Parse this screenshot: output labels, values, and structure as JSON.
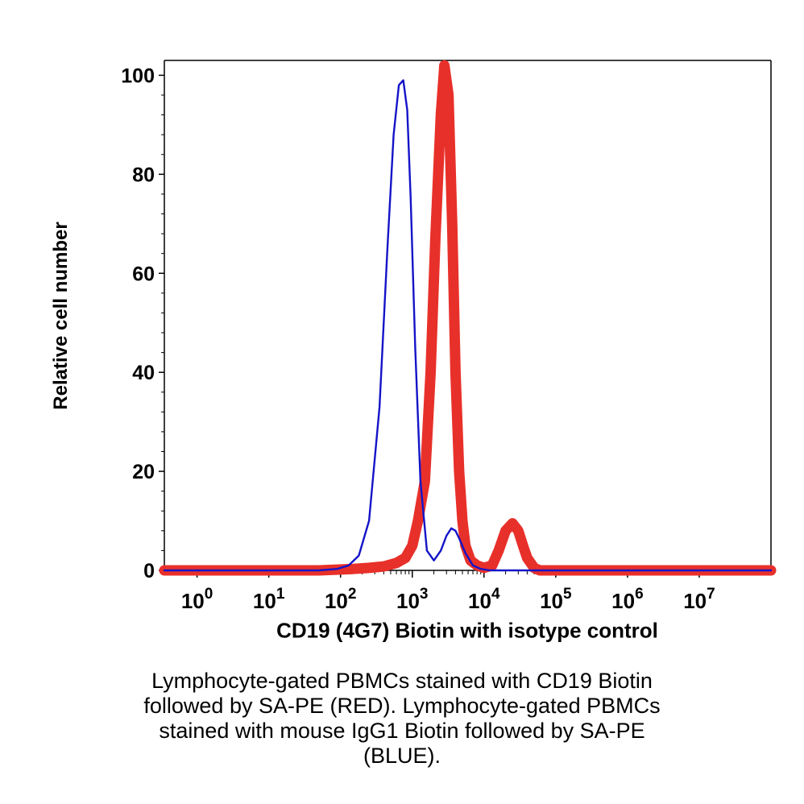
{
  "chart_data": {
    "type": "line",
    "title": "",
    "xlabel": "CD19 (4G7) Biotin with isotype control",
    "ylabel": "Relative cell number",
    "x_scale": "log",
    "xlim": [
      0.35,
      100000000
    ],
    "ylim": [
      0,
      103
    ],
    "grid": false,
    "x_ticks": [
      {
        "value": 1,
        "base": "10",
        "exp": "0"
      },
      {
        "value": 10,
        "base": "10",
        "exp": "1"
      },
      {
        "value": 100,
        "base": "10",
        "exp": "2"
      },
      {
        "value": 1000,
        "base": "10",
        "exp": "3"
      },
      {
        "value": 10000,
        "base": "10",
        "exp": "4"
      },
      {
        "value": 100000,
        "base": "10",
        "exp": "5"
      },
      {
        "value": 1000000,
        "base": "10",
        "exp": "6"
      },
      {
        "value": 10000000,
        "base": "10",
        "exp": "7"
      }
    ],
    "y_ticks": [
      {
        "value": 0,
        "label": "0"
      },
      {
        "value": 20,
        "label": "20"
      },
      {
        "value": 40,
        "label": "40"
      },
      {
        "value": 60,
        "label": "60"
      },
      {
        "value": 80,
        "label": "80"
      },
      {
        "value": 100,
        "label": "100"
      }
    ],
    "series": [
      {
        "color": "#1414c8",
        "x": [
          0.35,
          50,
          90,
          130,
          180,
          250,
          350,
          450,
          550,
          650,
          750,
          850,
          950,
          1100,
          1300,
          1600,
          2000,
          2500,
          3000,
          3500,
          4000,
          4500,
          5500,
          7000,
          9000,
          12000,
          100000000
        ],
        "y": [
          0,
          0,
          0.3,
          1,
          3,
          10,
          33,
          65,
          88,
          98,
          99,
          93,
          75,
          45,
          18,
          4,
          2,
          4,
          7,
          8.5,
          8,
          6.5,
          3.5,
          1,
          0.3,
          0,
          0
        ]
      },
      {
        "color": "#e8302a",
        "x": [
          0.35,
          50,
          150,
          250,
          400,
          600,
          800,
          1000,
          1200,
          1500,
          1800,
          2100,
          2500,
          2800,
          3200,
          3600,
          4000,
          4500,
          5000,
          5500,
          6500,
          8000,
          10000,
          13000,
          16000,
          20000,
          25000,
          30000,
          35000,
          40000,
          50000,
          60000,
          100000000
        ],
        "y": [
          0,
          0,
          0.3,
          0.5,
          0.8,
          1.5,
          2.5,
          5,
          10,
          18,
          40,
          67,
          92,
          102,
          96,
          70,
          40,
          20,
          10,
          5,
          2,
          1,
          0.5,
          1,
          4,
          8,
          9.5,
          8,
          5,
          2.5,
          0.5,
          0,
          0
        ]
      }
    ]
  },
  "caption": {
    "lines": [
      "Lymphocyte-gated PBMCs stained with CD19 Biotin",
      "followed by SA-PE (RED). Lymphocyte-gated PBMCs",
      "stained with mouse IgG1 Biotin followed by SA-PE",
      "(BLUE)."
    ]
  }
}
